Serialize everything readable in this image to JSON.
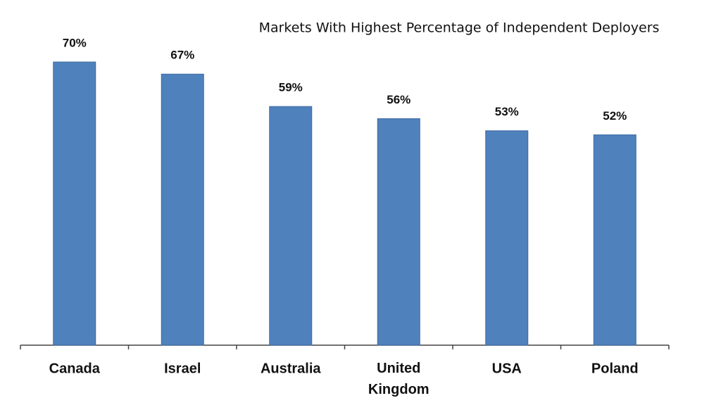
{
  "chart_data": {
    "type": "bar",
    "title": "Markets With Highest Percentage of Independent Deployers",
    "categories": [
      "Canada",
      "Israel",
      "Australia",
      "United Kingdom",
      "USA",
      "Poland"
    ],
    "values": [
      70,
      67,
      59,
      56,
      53,
      52
    ],
    "value_labels": [
      "70%",
      "67%",
      "59%",
      "56%",
      "53%",
      "52%"
    ],
    "color": "#4f81bd",
    "ylim": [
      0,
      70
    ]
  }
}
